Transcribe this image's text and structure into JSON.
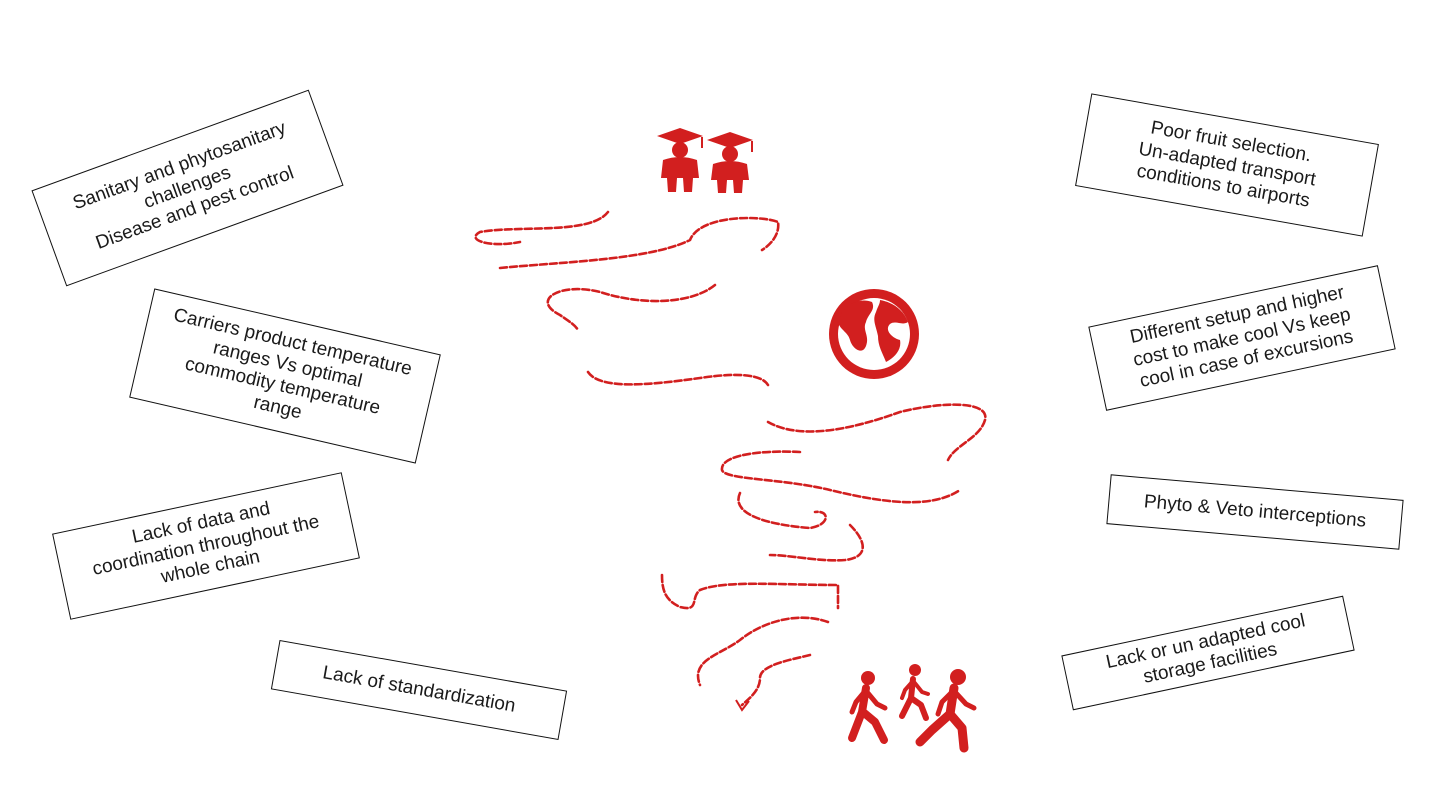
{
  "colors": {
    "accent": "#d21f1f",
    "border": "#111111",
    "text": "#1a1a1a"
  },
  "icons": {
    "graduates": "graduates-icon",
    "globe": "globe-icon",
    "walkers": "walking-people-icon"
  },
  "boxes": {
    "sanitary": "Sanitary and phytosanitary\nchallenges\nDisease and pest control",
    "carriers": "Carriers product temperature\nranges Vs optimal\ncommodity temperature\nrange",
    "data": "Lack of data and\ncoordination throughout the\nwhole chain",
    "standardization": "Lack of standardization",
    "fruit": "Poor fruit selection.\nUn-adapted transport\nconditions to airports",
    "setup": "Different setup and higher\ncost to make cool Vs keep\ncool in case of excursions",
    "phyto": "Phyto & Veto interceptions",
    "storage": "Lack or un adapted cool\nstorage facilities"
  }
}
